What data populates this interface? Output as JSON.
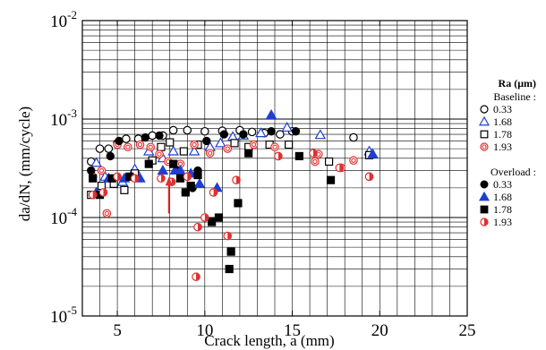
{
  "chart_data": {
    "type": "scatter",
    "title": "",
    "xlabel": "Crack length, a (mm)",
    "ylabel": "da/dN, (mm/cycle)",
    "xlim": [
      3,
      25
    ],
    "ylim": [
      1e-05,
      0.01
    ],
    "yscale": "log",
    "grid": true,
    "xticks": [
      5,
      10,
      15,
      20,
      25
    ],
    "yticks": [
      {
        "base": "10",
        "exp": "-5"
      },
      {
        "base": "10",
        "exp": "-4"
      },
      {
        "base": "10",
        "exp": "-3"
      },
      {
        "base": "10",
        "exp": "-2"
      }
    ],
    "legend_placement": "right",
    "legend": {
      "title": "Ra (μm)",
      "groups": [
        {
          "label": "Baseline :",
          "entries": [
            "0.33",
            "1.68",
            "1.78",
            "1.93"
          ]
        },
        {
          "label": "Overload :",
          "entries": [
            "0.33",
            "1.68",
            "1.78",
            "1.93"
          ]
        }
      ]
    },
    "annotation": {
      "type": "arrow",
      "x": 7.95,
      "y_from": 0.00011,
      "y_to": 0.00026,
      "color": "#e03030"
    },
    "series": [
      {
        "name": "Baseline 0.33",
        "marker": "open-circle",
        "color": "#000000",
        "points": [
          [
            3.5,
            0.00037
          ],
          [
            4.0,
            0.0005
          ],
          [
            4.5,
            0.0005
          ],
          [
            5.0,
            0.00057
          ],
          [
            5.5,
            0.00063
          ],
          [
            6.2,
            0.00063
          ],
          [
            7.0,
            0.00068
          ],
          [
            7.6,
            0.00068
          ],
          [
            8.2,
            0.00077
          ],
          [
            9.0,
            0.00077
          ],
          [
            10.0,
            0.00075
          ],
          [
            11.0,
            0.00076
          ],
          [
            12.0,
            0.00077
          ],
          [
            12.7,
            0.00074
          ],
          [
            13.4,
            0.00072
          ],
          [
            14.3,
            0.0007
          ],
          [
            15.0,
            0.00075
          ],
          [
            18.5,
            0.00065
          ]
        ]
      },
      {
        "name": "Baseline 1.68",
        "marker": "open-triangle",
        "color": "#1f3fd0",
        "points": [
          [
            3.8,
            0.00036
          ],
          [
            4.3,
            0.00026
          ],
          [
            5.3,
            0.00023
          ],
          [
            6.0,
            0.00031
          ],
          [
            6.8,
            0.00047
          ],
          [
            7.6,
            0.0004
          ],
          [
            8.2,
            0.00047
          ],
          [
            9.4,
            0.00047
          ],
          [
            10.3,
            0.00052
          ],
          [
            10.9,
            0.00057
          ],
          [
            11.6,
            0.00066
          ],
          [
            12.2,
            0.00068
          ],
          [
            13.2,
            0.00072
          ],
          [
            14.7,
            0.00082
          ],
          [
            16.6,
            0.00069
          ],
          [
            19.4,
            0.00047
          ]
        ]
      },
      {
        "name": "Baseline 1.78",
        "marker": "open-square",
        "color": "#000000",
        "points": [
          [
            3.5,
            0.00017
          ],
          [
            4.1,
            0.00021
          ],
          [
            4.8,
            0.00022
          ],
          [
            5.4,
            0.00019
          ],
          [
            6.0,
            0.00028
          ],
          [
            7.0,
            0.00038
          ],
          [
            7.5,
            0.00052
          ],
          [
            8.0,
            0.00058
          ],
          [
            8.8,
            0.00047
          ],
          [
            9.6,
            0.00055
          ],
          [
            11.7,
            0.00057
          ],
          [
            12.5,
            0.00052
          ],
          [
            13.7,
            0.00055
          ],
          [
            14.8,
            0.00055
          ],
          [
            17.1,
            0.00037
          ],
          [
            19.4,
            0.00043
          ]
        ]
      },
      {
        "name": "Baseline 1.93",
        "marker": "double-circle",
        "color": "#e03030",
        "points": [
          [
            3.6,
            0.00026
          ],
          [
            4.1,
            0.0003
          ],
          [
            4.4,
            0.00011
          ],
          [
            5.0,
            0.00055
          ],
          [
            5.6,
            0.00052
          ],
          [
            6.3,
            0.00055
          ],
          [
            6.9,
            0.00052
          ],
          [
            7.4,
            0.00044
          ],
          [
            7.9,
            0.00037
          ],
          [
            8.6,
            0.00035
          ],
          [
            9.4,
            0.00055
          ],
          [
            10.3,
            0.00045
          ],
          [
            11.3,
            0.0005
          ],
          [
            12.8,
            0.00055
          ],
          [
            14.0,
            0.00052
          ],
          [
            16.3,
            0.00037
          ],
          [
            16.5,
            0.00044
          ],
          [
            17.8,
            0.00032
          ],
          [
            18.5,
            0.00038
          ],
          [
            19.4,
            0.00026
          ]
        ]
      },
      {
        "name": "Overload 0.33",
        "marker": "filled-circle",
        "color": "#000000",
        "points": [
          [
            3.5,
            0.0003
          ],
          [
            4.6,
            0.00042
          ],
          [
            5.1,
            0.0006
          ],
          [
            6.6,
            0.00065
          ],
          [
            7.4,
            0.00068
          ],
          [
            8.5,
            0.0003
          ],
          [
            8.9,
            0.00018
          ],
          [
            9.3,
            0.0002
          ],
          [
            9.6,
            0.0003
          ],
          [
            10.1,
            0.0006
          ],
          [
            11.1,
            0.0007
          ],
          [
            12.2,
            0.0007
          ],
          [
            13.8,
            0.00075
          ],
          [
            15.2,
            0.00075
          ]
        ]
      },
      {
        "name": "Overload 1.68",
        "marker": "filled-triangle",
        "color": "#1f3fd0",
        "points": [
          [
            3.8,
            0.00018
          ],
          [
            4.5,
            0.00025
          ],
          [
            5.4,
            0.00025
          ],
          [
            6.3,
            0.00025
          ],
          [
            7.6,
            0.0003
          ],
          [
            8.3,
            0.0003
          ],
          [
            8.6,
            0.0003
          ],
          [
            9.2,
            0.00028
          ],
          [
            9.7,
            0.00022
          ],
          [
            10.7,
            0.0002
          ],
          [
            13.8,
            0.0011
          ],
          [
            19.6,
            0.00044
          ]
        ]
      },
      {
        "name": "Overload 1.78",
        "marker": "filled-square",
        "color": "#000000",
        "points": [
          [
            3.6,
            0.00025
          ],
          [
            4.0,
            0.00017
          ],
          [
            4.7,
            0.00025
          ],
          [
            5.7,
            0.00026
          ],
          [
            6.8,
            0.00035
          ],
          [
            8.2,
            0.00035
          ],
          [
            8.6,
            0.00025
          ],
          [
            8.9,
            0.00018
          ],
          [
            9.2,
            0.00021
          ],
          [
            9.6,
            0.00027
          ],
          [
            10.4,
            9e-05
          ],
          [
            10.8,
            0.0001
          ],
          [
            11.4,
            3e-05
          ],
          [
            11.5,
            4.5e-05
          ],
          [
            11.9,
            0.00014
          ],
          [
            12.5,
            0.00045
          ],
          [
            15.4,
            0.00042
          ],
          [
            17.2,
            0.00024
          ]
        ]
      },
      {
        "name": "Overload 1.93",
        "marker": "half-filled-circle",
        "color": "#e03030",
        "points": [
          [
            3.6,
            0.00017
          ],
          [
            4.2,
            0.00018
          ],
          [
            5.0,
            0.00026
          ],
          [
            6.0,
            0.00025
          ],
          [
            7.5,
            0.00025
          ],
          [
            8.1,
            0.00023
          ],
          [
            9.0,
            0.00026
          ],
          [
            9.5,
            2.5e-05
          ],
          [
            9.6,
            8e-05
          ],
          [
            10.0,
            0.0001
          ],
          [
            10.5,
            0.00018
          ],
          [
            11.3,
            6.5e-05
          ],
          [
            11.8,
            0.00024
          ],
          [
            14.2,
            0.00042
          ],
          [
            16.2,
            0.00045
          ],
          [
            17.7,
            0.00032
          ],
          [
            19.4,
            0.00026
          ]
        ]
      }
    ]
  }
}
